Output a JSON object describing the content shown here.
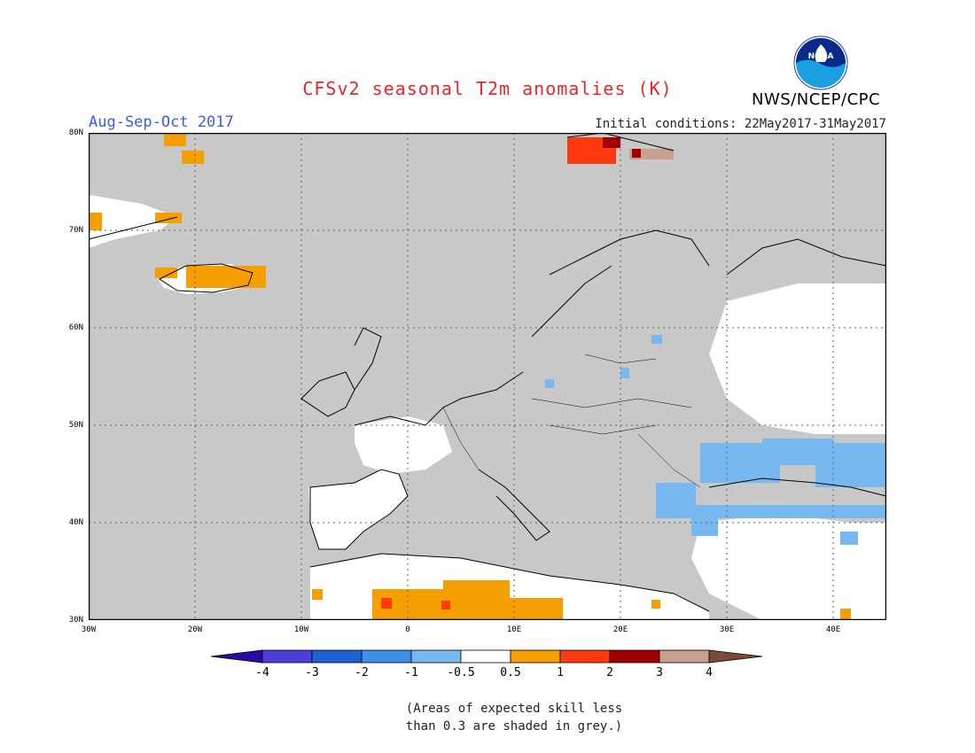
{
  "header": {
    "title": "CFSv2 seasonal T2m anomalies (K)",
    "agency": "NWS/NCEP/CPC",
    "logo_text": "NOAA",
    "season": "Aug-Sep-Oct 2017",
    "initial_conditions": "Initial conditions: 22May2017-31May2017"
  },
  "map": {
    "lat_labels": [
      "80N",
      "70N",
      "60N",
      "50N",
      "40N",
      "30N"
    ],
    "lon_labels": [
      "30W",
      "20W",
      "10W",
      "0",
      "10E",
      "20E",
      "30E",
      "40E"
    ],
    "colors": {
      "ocean_grey": "#c8c8c8",
      "land_white": "#ffffff",
      "coast": "#000000"
    }
  },
  "colorbar": {
    "labels": [
      "-4",
      "-3",
      "-2",
      "-1",
      "-0.5",
      "0.5",
      "1",
      "2",
      "3",
      "4"
    ],
    "colors": [
      "#2a0aa0",
      "#4a3fd8",
      "#2060d0",
      "#3f8ee8",
      "#78b8f0",
      "#ffffff",
      "#f5a000",
      "#ff3a10",
      "#a00000",
      "#c8a090",
      "#7a4a3a"
    ]
  },
  "footnote": {
    "line1": "(Areas of expected skill less",
    "line2": "than 0.3 are shaded in grey.)"
  }
}
